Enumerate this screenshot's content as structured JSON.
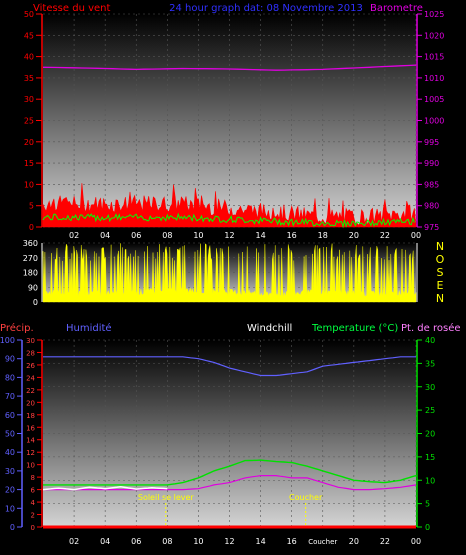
{
  "header": {
    "wind_title": "Vitesse du vent",
    "center_title": "24 hour graph dat: 08 Novembre 2013",
    "baro_title": "Barometre"
  },
  "lower_header": {
    "precip": "Précip.",
    "humidity": "Humidité",
    "windchill": "Windchill",
    "temperature": "Temperature (°C)",
    "dewpoint": "Pt. de rosée"
  },
  "direction_labels": [
    "N",
    "O",
    "S",
    "E",
    "N"
  ],
  "annotations": {
    "sunrise": "Soleil se lever",
    "sunset": "Coucher",
    "sunset_hour": "Coucher"
  },
  "colors": {
    "wind": "#ff0000",
    "gust": "#00ff00",
    "baro": "#e000e0",
    "direction": "#ffff00",
    "humidity": "#6060ff",
    "temperature": "#00e000",
    "windchill": "#ffffff",
    "dewpoint": "#e000e0",
    "precip": "#ff0000",
    "center_title": "#3030ff",
    "annotation": "#ffff00"
  },
  "chart_data": [
    {
      "type": "line",
      "name": "wind-baro",
      "x_ticks": [
        "02",
        "04",
        "06",
        "08",
        "10",
        "12",
        "14",
        "16",
        "18",
        "20",
        "22",
        "00"
      ],
      "y_left": {
        "label": "Vitesse du vent",
        "ticks": [
          0,
          5,
          10,
          15,
          20,
          25,
          30,
          35,
          40,
          45,
          50
        ],
        "range": [
          0,
          50
        ]
      },
      "y_right": {
        "label": "Barometre",
        "ticks": [
          975,
          980,
          985,
          990,
          995,
          1000,
          1005,
          1010,
          1015,
          1020,
          1025
        ],
        "range": [
          975,
          1025
        ]
      },
      "series": [
        {
          "name": "Vitesse du vent",
          "axis": "left",
          "x": [
            0,
            3,
            6,
            9,
            12,
            15,
            18,
            21,
            24
          ],
          "values": [
            5,
            5,
            5,
            5,
            4,
            3,
            2,
            2,
            3
          ]
        },
        {
          "name": "Barometre",
          "axis": "right",
          "x": [
            0,
            3,
            6,
            9,
            12,
            15,
            18,
            21,
            24
          ],
          "values": [
            1012.5,
            1012.3,
            1012,
            1012.2,
            1012.1,
            1011.8,
            1012,
            1012.5,
            1013
          ]
        }
      ]
    },
    {
      "type": "line",
      "name": "wind-direction",
      "y_left": {
        "ticks": [
          0,
          90,
          180,
          270,
          360
        ],
        "range": [
          0,
          360
        ]
      },
      "series": [
        {
          "name": "direction",
          "x": [
            0,
            3,
            6,
            9,
            12,
            15,
            18,
            21,
            24
          ],
          "values": [
            60,
            50,
            60,
            70,
            60,
            50,
            60,
            50,
            60
          ]
        }
      ]
    },
    {
      "type": "line",
      "name": "humidity-temp",
      "x_ticks": [
        "02",
        "04",
        "06",
        "08",
        "10",
        "12",
        "14",
        "16",
        "Coucher",
        "20",
        "22",
        "00"
      ],
      "y_humidity": {
        "label": "Humidité",
        "ticks": [
          0,
          10,
          20,
          30,
          40,
          50,
          60,
          70,
          80,
          90,
          100
        ],
        "range": [
          0,
          100
        ]
      },
      "y_precip": {
        "label": "Précip.",
        "ticks": [
          0,
          2,
          4,
          6,
          8,
          10,
          12,
          14,
          16,
          18,
          20,
          22,
          24,
          26,
          28,
          30
        ],
        "range": [
          0,
          30
        ]
      },
      "y_temp": {
        "label": "Temperature (°C)",
        "ticks": [
          0,
          5,
          10,
          15,
          20,
          25,
          30,
          35,
          40
        ],
        "range": [
          0,
          40
        ]
      },
      "series": [
        {
          "name": "Humidité",
          "x": [
            0,
            3,
            6,
            9,
            10,
            11,
            12,
            13,
            14,
            15,
            16,
            17,
            18,
            19,
            20,
            21,
            22,
            23,
            24
          ],
          "values": [
            91,
            91,
            91,
            91,
            90,
            88,
            85,
            83,
            81,
            81,
            82,
            83,
            86,
            87,
            88,
            89,
            90,
            91,
            91
          ]
        },
        {
          "name": "Temperature (°C)",
          "x": [
            0,
            3,
            6,
            8,
            9,
            10,
            11,
            12,
            13,
            14,
            15,
            16,
            17,
            18,
            19,
            20,
            21,
            22,
            23,
            24
          ],
          "values": [
            9,
            9,
            9,
            9,
            9.5,
            10.5,
            12,
            13,
            14.2,
            14.3,
            14,
            13.8,
            13,
            12,
            11,
            10,
            9.7,
            9.5,
            10,
            11
          ]
        },
        {
          "name": "Pt. de rosée",
          "x": [
            0,
            3,
            6,
            9,
            10,
            11,
            12,
            13,
            14,
            15,
            16,
            17,
            18,
            19,
            20,
            21,
            22,
            23,
            24
          ],
          "values": [
            8,
            8,
            8,
            8,
            8.2,
            9,
            9.5,
            10.5,
            11,
            11,
            10.5,
            10.5,
            9.5,
            8.5,
            8,
            8,
            8.2,
            8.5,
            9
          ]
        },
        {
          "name": "Windchill",
          "x": [
            0,
            1,
            2,
            3,
            4,
            5,
            6,
            7,
            8
          ],
          "values": [
            8,
            8.3,
            8,
            8.5,
            8.2,
            8.6,
            8.1,
            8.4,
            8.2
          ]
        },
        {
          "name": "Précip.",
          "x": [
            0,
            24
          ],
          "values": [
            0,
            0
          ]
        }
      ],
      "events": [
        {
          "name": "Soleil se lever",
          "x": 7.9
        },
        {
          "name": "Coucher",
          "x": 16.9
        }
      ]
    }
  ]
}
